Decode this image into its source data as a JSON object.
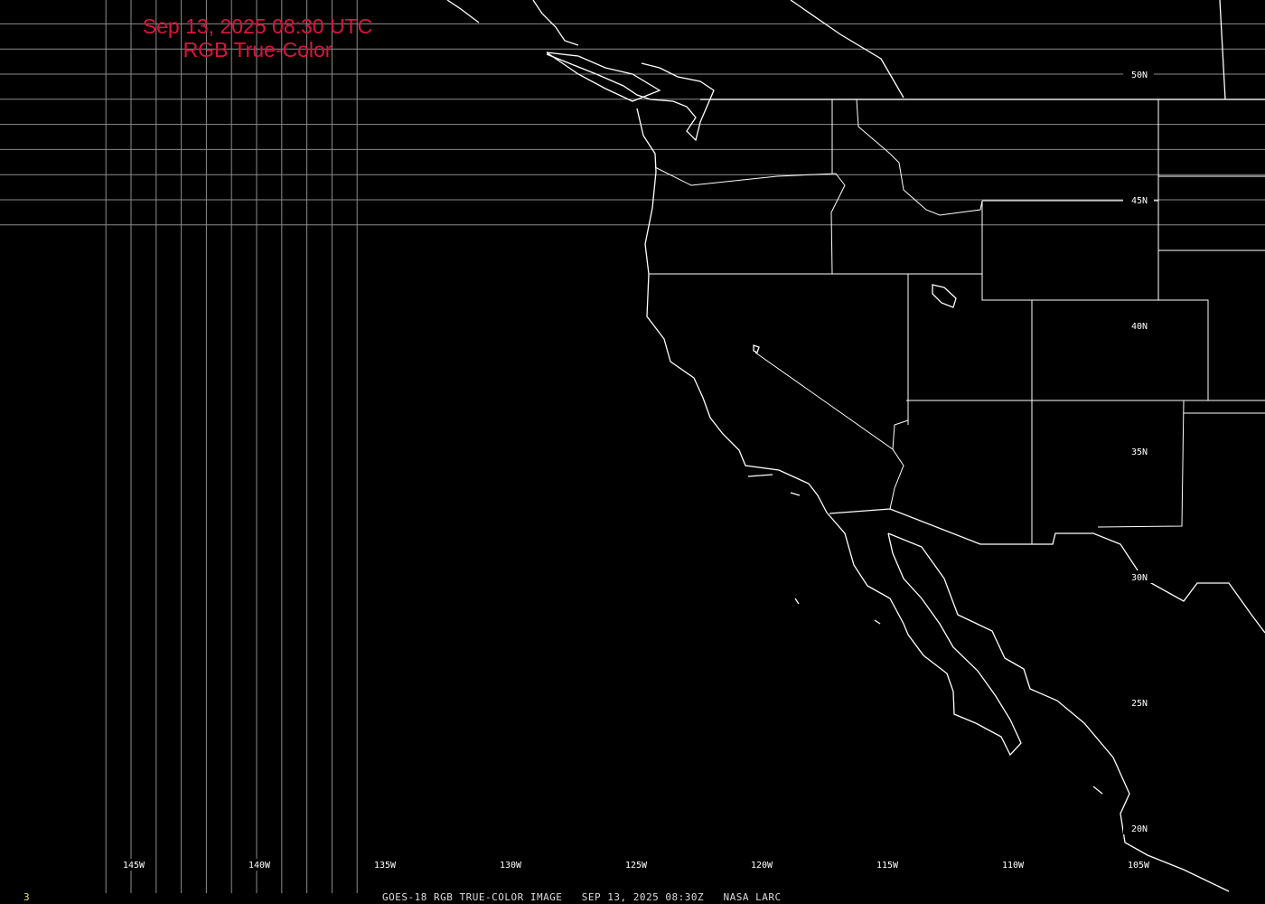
{
  "title": {
    "line1": "Sep 13, 2025 08:30 UTC",
    "line2": "RGB True-Color"
  },
  "caption": "GOES-18 RGB TRUE-COLOR IMAGE   SEP 13, 2025 08:30Z   NASA LARC",
  "frame_number": "3",
  "colors": {
    "title": "#dc143c",
    "grid": "#8c8c8c",
    "coastline": "#ffffff",
    "background": "#000000",
    "frame_number": "#e8e070"
  },
  "grid": {
    "longitudes": [
      "145W",
      "140W",
      "135W",
      "130W",
      "125W",
      "120W",
      "115W",
      "110W",
      "105W"
    ],
    "latitudes": [
      "50N",
      "45N",
      "40N",
      "35N",
      "30N",
      "25N",
      "20N"
    ]
  }
}
